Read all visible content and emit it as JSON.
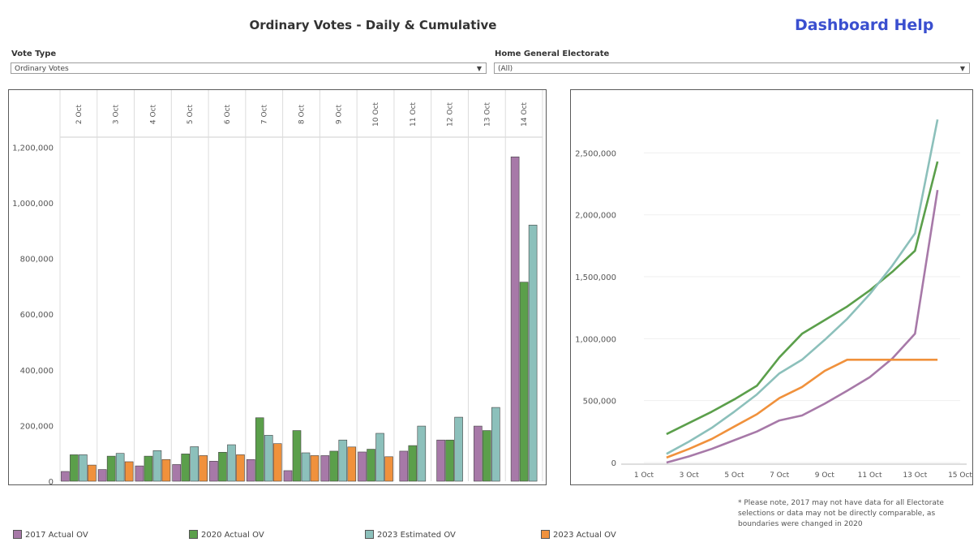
{
  "header": {
    "title": "Ordinary Votes - Daily & Cumulative",
    "help_label": "Dashboard Help"
  },
  "filters": {
    "vote_type": {
      "label": "Vote Type",
      "value": "Ordinary Votes"
    },
    "electorate": {
      "label": "Home General Electorate",
      "value": "(All)"
    }
  },
  "colors": {
    "2017": "#a779a8",
    "2020": "#5b9f4b",
    "2023e": "#8cc0bb",
    "2023a": "#f0913c"
  },
  "legend": [
    {
      "label": "2017 Actual OV",
      "color": "#a779a8"
    },
    {
      "label": "2020 Actual OV",
      "color": "#5b9f4b"
    },
    {
      "label": "2023 Estimated OV",
      "color": "#8cc0bb"
    },
    {
      "label": "2023 Actual OV",
      "color": "#f0913c"
    }
  ],
  "note": "* Please note, 2017 may not have data for all Electorate selections or data may not be directly comparable, as boundaries were changed in 2020",
  "chart_data": [
    {
      "type": "bar",
      "categories": [
        "2 Oct",
        "3 Oct",
        "4 Oct",
        "5 Oct",
        "6 Oct",
        "7 Oct",
        "8 Oct",
        "9 Oct",
        "10 Oct",
        "11 Oct",
        "12 Oct",
        "13 Oct",
        "14 Oct"
      ],
      "series": [
        {
          "name": "2017 Actual OV",
          "color": "#a779a8",
          "values": [
            35000,
            42000,
            55000,
            60000,
            72000,
            78000,
            38000,
            92000,
            105000,
            108000,
            148000,
            198000,
            1165000
          ]
        },
        {
          "name": "2020 Actual OV",
          "color": "#5b9f4b",
          "values": [
            95000,
            90000,
            90000,
            98000,
            104000,
            228000,
            182000,
            108000,
            115000,
            128000,
            148000,
            182000,
            715000
          ]
        },
        {
          "name": "2023 Estimated OV",
          "color": "#8cc0bb",
          "values": [
            95000,
            100000,
            110000,
            124000,
            131000,
            165000,
            102000,
            148000,
            172000,
            198000,
            230000,
            265000,
            920000
          ]
        },
        {
          "name": "2023 Actual OV",
          "color": "#f0913c",
          "values": [
            58000,
            70000,
            78000,
            92000,
            95000,
            135000,
            92000,
            123000,
            88000,
            null,
            null,
            null,
            null
          ]
        }
      ],
      "yticks": [
        0,
        200000,
        400000,
        600000,
        800000,
        1000000,
        1200000
      ],
      "ytick_labels": [
        "0",
        "200,000",
        "400,000",
        "600,000",
        "800,000",
        "1,000,000",
        "1,200,000"
      ],
      "ylim": [
        0,
        1230000
      ]
    },
    {
      "type": "line",
      "x_domain": [
        1,
        15
      ],
      "xticks": [
        1,
        3,
        5,
        7,
        9,
        11,
        13,
        15
      ],
      "xtick_labels": [
        "1 Oct",
        "3 Oct",
        "5 Oct",
        "7 Oct",
        "9 Oct",
        "11 Oct",
        "13 Oct",
        "15 Oct"
      ],
      "yticks": [
        0,
        500000,
        1000000,
        1500000,
        2000000,
        2500000
      ],
      "ytick_labels": [
        "0",
        "500,000",
        "1,000,000",
        "1,500,000",
        "2,000,000",
        "2,500,000"
      ],
      "ylim": [
        0,
        2850000
      ],
      "series": [
        {
          "name": "2017 Actual OV",
          "color": "#a779a8",
          "x": [
            2,
            3,
            4,
            5,
            6,
            7,
            8,
            9,
            10,
            11,
            12,
            13,
            14
          ],
          "values": [
            0,
            50000,
            110000,
            180000,
            250000,
            340000,
            380000,
            475000,
            580000,
            690000,
            840000,
            1040000,
            2200000
          ]
        },
        {
          "name": "2020 Actual OV",
          "color": "#5b9f4b",
          "x": [
            2,
            3,
            4,
            5,
            6,
            7,
            8,
            9,
            10,
            11,
            12,
            13,
            14
          ],
          "values": [
            230000,
            320000,
            410000,
            510000,
            620000,
            850000,
            1040000,
            1150000,
            1260000,
            1390000,
            1540000,
            1710000,
            2430000
          ]
        },
        {
          "name": "2023 Estimated OV",
          "color": "#8cc0bb",
          "x": [
            2,
            3,
            4,
            5,
            6,
            7,
            8,
            9,
            10,
            11,
            12,
            13,
            14
          ],
          "values": [
            70000,
            170000,
            280000,
            410000,
            550000,
            720000,
            830000,
            990000,
            1160000,
            1360000,
            1590000,
            1850000,
            2770000
          ]
        },
        {
          "name": "2023 Actual OV",
          "color": "#f0913c",
          "x": [
            2,
            3,
            4,
            5,
            6,
            7,
            8,
            9,
            10,
            11,
            12,
            13,
            14
          ],
          "values": [
            40000,
            110000,
            190000,
            290000,
            390000,
            520000,
            610000,
            740000,
            830000,
            830000,
            830000,
            830000,
            830000
          ]
        }
      ]
    }
  ]
}
